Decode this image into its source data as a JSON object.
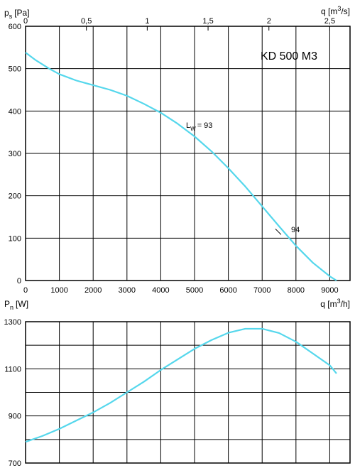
{
  "colors": {
    "curve": "#55d7ec",
    "grid": "#000000",
    "background": "#ffffff"
  },
  "chart_data": [
    {
      "type": "line",
      "title": "KD 500 M3",
      "ylabel_main": "p",
      "ylabel_sub": "s",
      "ylabel_unit": "[Pa]",
      "xlabel_top_main": "q [m",
      "xlabel_top_sup": "3",
      "xlabel_top_tail": "/s]",
      "xlabel_bottom_main": "q [m",
      "xlabel_bottom_sup": "3",
      "xlabel_bottom_tail": "/h]",
      "xlim": [
        0,
        9600
      ],
      "ylim": [
        0,
        600
      ],
      "xticks": [
        0,
        1000,
        2000,
        3000,
        4000,
        5000,
        6000,
        7000,
        8000,
        9000
      ],
      "yticks": [
        0,
        100,
        200,
        300,
        400,
        500,
        600
      ],
      "xticks_top_values": [
        0,
        0.5,
        1,
        1.5,
        2,
        2.5
      ],
      "xticks_top_labels": [
        "0",
        "0,5",
        "1",
        "1,5",
        "2",
        "2,5"
      ],
      "grid": true,
      "series": [
        {
          "x": [
            0,
            300,
            700,
            1000,
            1500,
            2000,
            2500,
            3000,
            3500,
            4000,
            4500,
            5000,
            5500,
            6000,
            6500,
            7000,
            7500,
            8000,
            8500,
            9000,
            9200
          ],
          "y": [
            538,
            520,
            500,
            487,
            472,
            461,
            450,
            436,
            417,
            396,
            370,
            340,
            305,
            265,
            222,
            175,
            128,
            82,
            42,
            10,
            0
          ]
        }
      ],
      "annotations": [
        {
          "text_main": "L",
          "text_sub": "W",
          "text_tail": "= 93",
          "x": 4450,
          "y": 370
        },
        {
          "text": "94",
          "x": 7350,
          "y": 95
        }
      ]
    },
    {
      "type": "line",
      "ylabel_main": "P",
      "ylabel_sub": "n",
      "ylabel_unit": "[W]",
      "xlim": [
        0,
        9600
      ],
      "ylim": [
        700,
        1300
      ],
      "yticks": [
        700,
        900,
        1100,
        1300
      ],
      "xgrid": [
        1000,
        2000,
        3000,
        4000,
        5000,
        6000,
        7000,
        8000,
        9000
      ],
      "ygrid": [
        800,
        900,
        1000,
        1100,
        1200,
        1300
      ],
      "grid": true,
      "series": [
        {
          "x": [
            0,
            500,
            1000,
            1500,
            2000,
            2500,
            3000,
            3500,
            4000,
            4500,
            5000,
            5500,
            6000,
            6500,
            7000,
            7500,
            8000,
            8500,
            9000,
            9200
          ],
          "y": [
            790,
            815,
            845,
            880,
            915,
            955,
            1000,
            1045,
            1095,
            1140,
            1185,
            1222,
            1253,
            1270,
            1270,
            1252,
            1215,
            1165,
            1115,
            1080
          ]
        }
      ]
    }
  ]
}
